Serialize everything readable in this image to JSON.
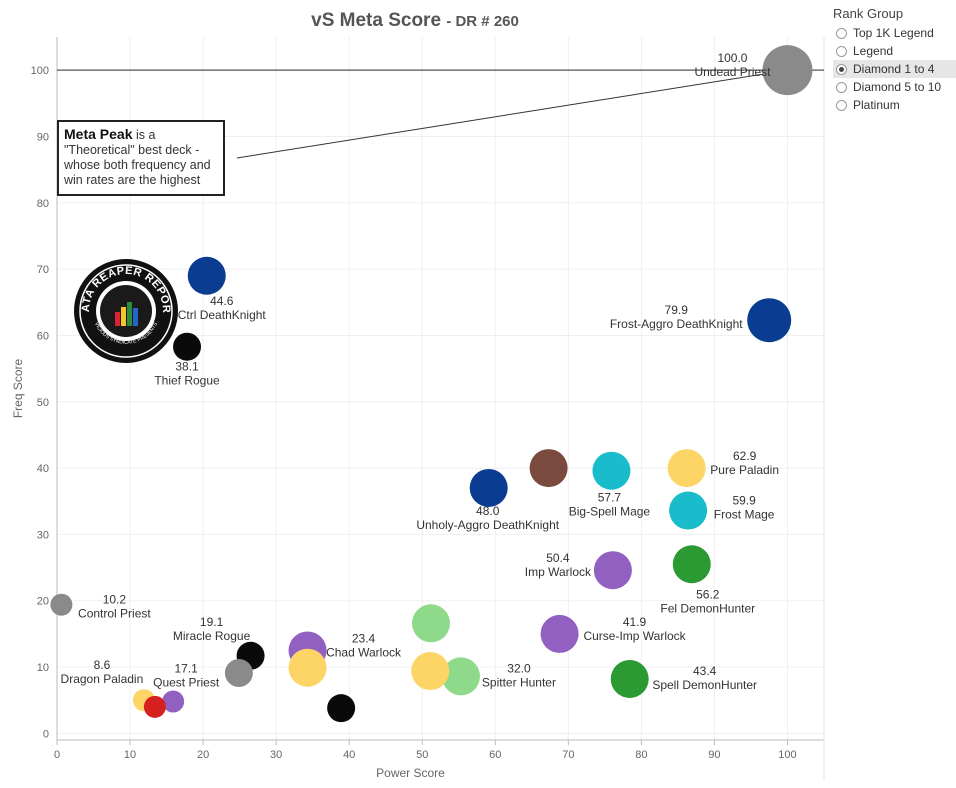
{
  "title": {
    "main": "vS Meta Score",
    "sub": "- DR # 260"
  },
  "legend": {
    "title": "Rank Group",
    "items": [
      {
        "label": "Top 1K Legend",
        "selected": false
      },
      {
        "label": "Legend",
        "selected": false
      },
      {
        "label": "Diamond 1 to 4",
        "selected": true
      },
      {
        "label": "Diamond 5 to 10",
        "selected": false
      },
      {
        "label": "Platinum",
        "selected": false
      }
    ]
  },
  "annotation": {
    "bold": "Meta Peak",
    "text": " is a \"Theoretical\" best deck - whose both frequency and win rates are the highest"
  },
  "logo": {
    "text_top": "DATA REAPER REPORT",
    "text_bottom": "VICIOUS SYNDICATE PRESENTS"
  },
  "colors": {
    "gray": "#8a8a8a",
    "navy": "#0a3d91",
    "black": "#0a0a0a",
    "brown": "#7a4a3e",
    "teal": "#19bccb",
    "yellow": "#fcd566",
    "purple": "#9160c0",
    "green": "#2b9a33",
    "lightgreen": "#8fd98a",
    "red": "#d62020"
  },
  "chart_data": {
    "type": "scatter",
    "title": "vS Meta Score - DR # 260",
    "xlabel": "Power Score",
    "ylabel": "Freq Score",
    "xlim": [
      0,
      105
    ],
    "ylim": [
      -1,
      105
    ],
    "xticks": [
      0,
      10,
      20,
      30,
      40,
      50,
      60,
      70,
      80,
      90,
      100
    ],
    "yticks": [
      0,
      10,
      20,
      30,
      40,
      50,
      60,
      70,
      80,
      90,
      100
    ],
    "reference_line_y": 100,
    "points": [
      {
        "name": "Undead Priest",
        "score": "100.0",
        "x": 100,
        "y": 100,
        "color": "gray"
      },
      {
        "name": "Frost-Aggro DeathKnight",
        "score": "79.9",
        "x": 97.5,
        "y": 62.3,
        "color": "navy"
      },
      {
        "name": "Ctrl DeathKnight",
        "score": "44.6",
        "x": 20.5,
        "y": 69,
        "color": "navy"
      },
      {
        "name": "Thief Rogue",
        "score": "38.1",
        "x": 17.8,
        "y": 58.3,
        "color": "black"
      },
      {
        "name": "Pure Paladin",
        "score": "62.9",
        "x": 86.2,
        "y": 40,
        "color": "yellow"
      },
      {
        "name": "Frost Mage",
        "score": "59.9",
        "x": 86.4,
        "y": 33.6,
        "color": "teal"
      },
      {
        "name": "Big-Spell Mage",
        "score": "57.7",
        "x": 75.9,
        "y": 39.6,
        "color": "teal"
      },
      {
        "name": "",
        "score": "",
        "x": 67.3,
        "y": 40,
        "color": "brown"
      },
      {
        "name": "Unholy-Aggro DeathKnight",
        "score": "48.0",
        "x": 59.1,
        "y": 37,
        "color": "navy"
      },
      {
        "name": "Imp Warlock",
        "score": "50.4",
        "x": 76.1,
        "y": 24.6,
        "color": "purple"
      },
      {
        "name": "Fel DemonHunter",
        "score": "56.2",
        "x": 86.9,
        "y": 25.5,
        "color": "green"
      },
      {
        "name": "Curse-Imp Warlock",
        "score": "41.9",
        "x": 68.8,
        "y": 15,
        "color": "purple"
      },
      {
        "name": "Spell DemonHunter",
        "score": "43.4",
        "x": 78.4,
        "y": 8.2,
        "color": "green"
      },
      {
        "name": "Spitter Hunter",
        "score": "32.0",
        "x": 55.3,
        "y": 8.6,
        "color": "lightgreen"
      },
      {
        "name": "",
        "score": "",
        "x": 51.2,
        "y": 16.6,
        "color": "lightgreen"
      },
      {
        "name": "",
        "score": "",
        "x": 51.1,
        "y": 9.4,
        "color": "yellow"
      },
      {
        "name": "Chad Warlock",
        "score": "23.4",
        "x": 34.3,
        "y": 12.5,
        "color": "purple"
      },
      {
        "name": "",
        "score": "",
        "x": 34.3,
        "y": 9.9,
        "color": "yellow"
      },
      {
        "name": "",
        "score": "",
        "x": 38.9,
        "y": 3.8,
        "color": "black"
      },
      {
        "name": "Miracle Rogue",
        "score": "19.1",
        "x": 26.5,
        "y": 11.7,
        "color": "black"
      },
      {
        "name": "",
        "score": "",
        "x": 24.9,
        "y": 9.1,
        "color": "gray"
      },
      {
        "name": "Control Priest",
        "score": "10.2",
        "x": 0.6,
        "y": 19.4,
        "color": "gray"
      },
      {
        "name": "Quest Priest",
        "score": "17.1",
        "x": 15.9,
        "y": 4.8,
        "color": "purple"
      },
      {
        "name": "Dragon Paladin",
        "score": "8.6",
        "x": 11.9,
        "y": 5,
        "color": "yellow"
      },
      {
        "name": "",
        "score": "",
        "x": 13.4,
        "y": 4,
        "color": "red"
      }
    ]
  }
}
